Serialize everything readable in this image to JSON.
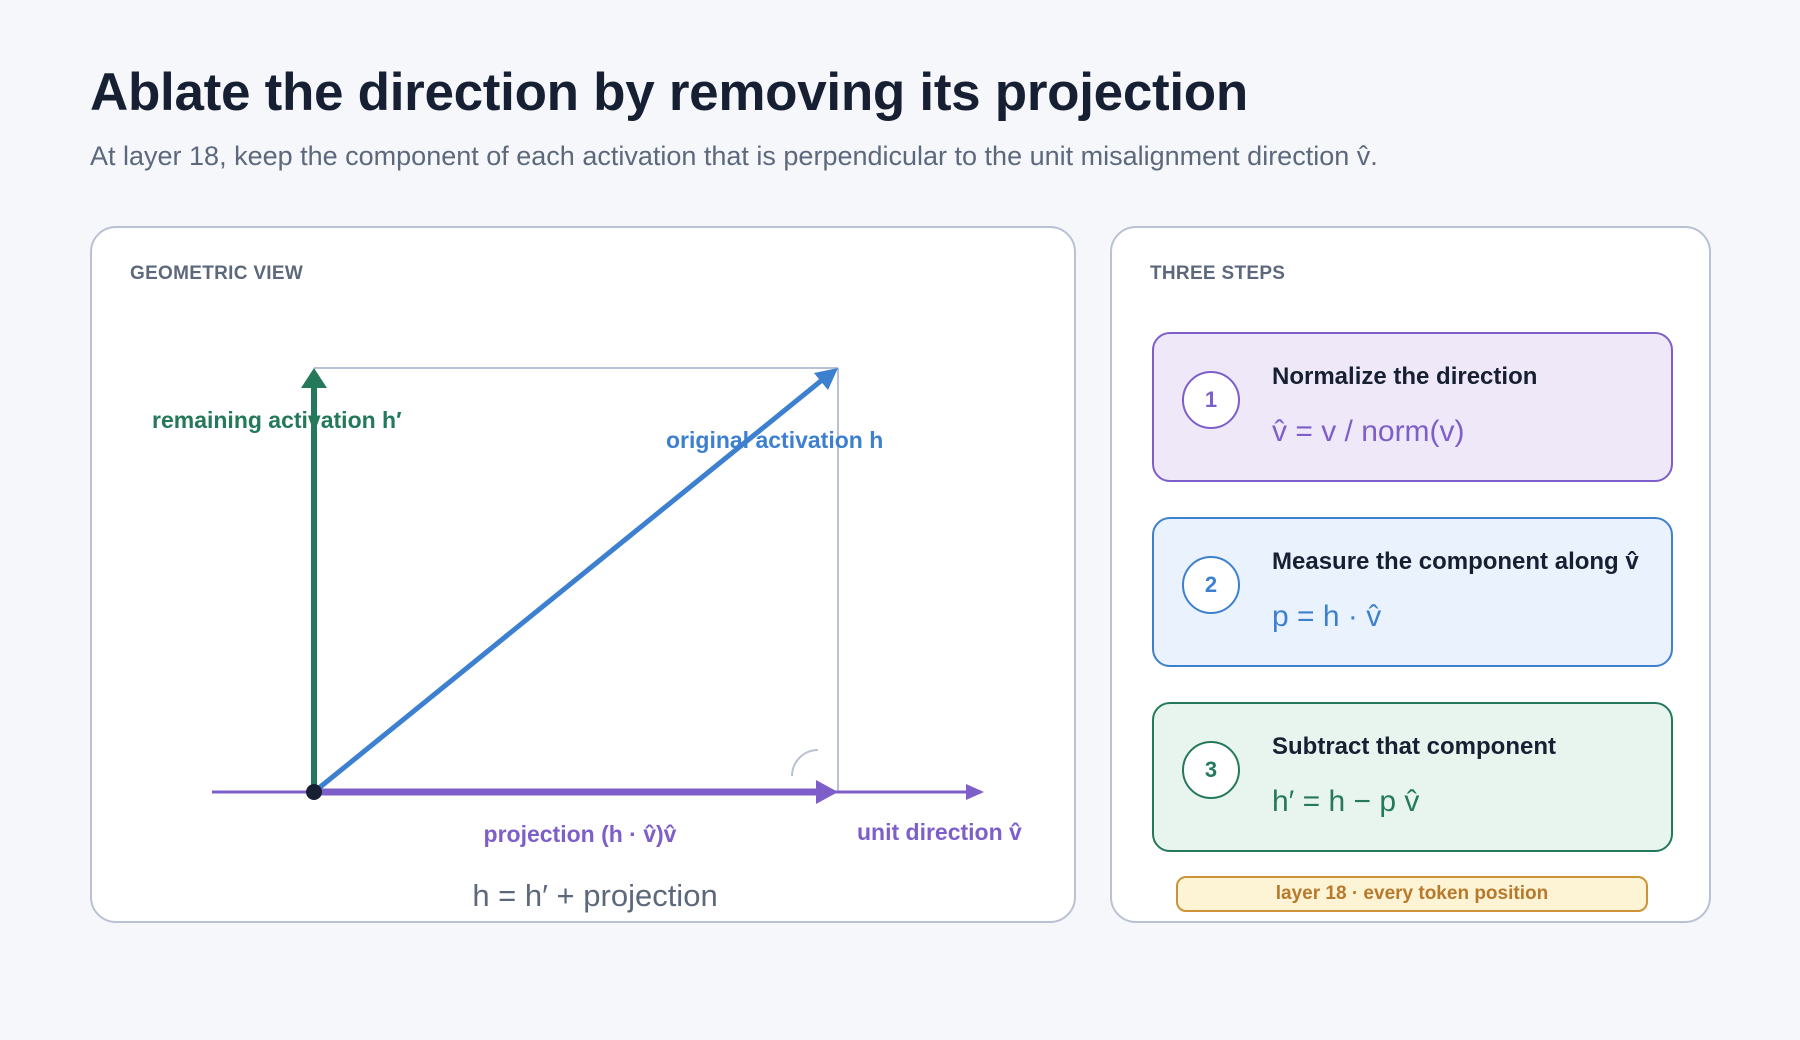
{
  "header": {
    "title": "Ablate the direction by removing its projection",
    "subtitle": "At layer 18, keep the component of each activation that is perpendicular to the unit misalignment direction v̂."
  },
  "geometric_view": {
    "label": "GEOMETRIC VIEW",
    "labels": {
      "remaining": "remaining activation  h′",
      "original": "original activation  h",
      "projection": "projection  (h · v̂)v̂",
      "unit_direction": "unit direction  v̂",
      "equation": "h = h′ + projection"
    }
  },
  "three_steps": {
    "label": "THREE STEPS",
    "steps": [
      {
        "number": "1",
        "title": "Normalize the direction",
        "formula": "v̂ = v / norm(v)"
      },
      {
        "number": "2",
        "title": "Measure the component along v̂",
        "formula": "p = h · v̂"
      },
      {
        "number": "3",
        "title": "Subtract that component",
        "formula": "h′ = h − p v̂"
      }
    ],
    "badge": "layer 18 · every token position"
  },
  "colors": {
    "green": "#24795a",
    "blue": "#3d80cf",
    "purple": "#7e5ec8",
    "guide": "#b9c1d3",
    "amber": "#cf9337"
  }
}
